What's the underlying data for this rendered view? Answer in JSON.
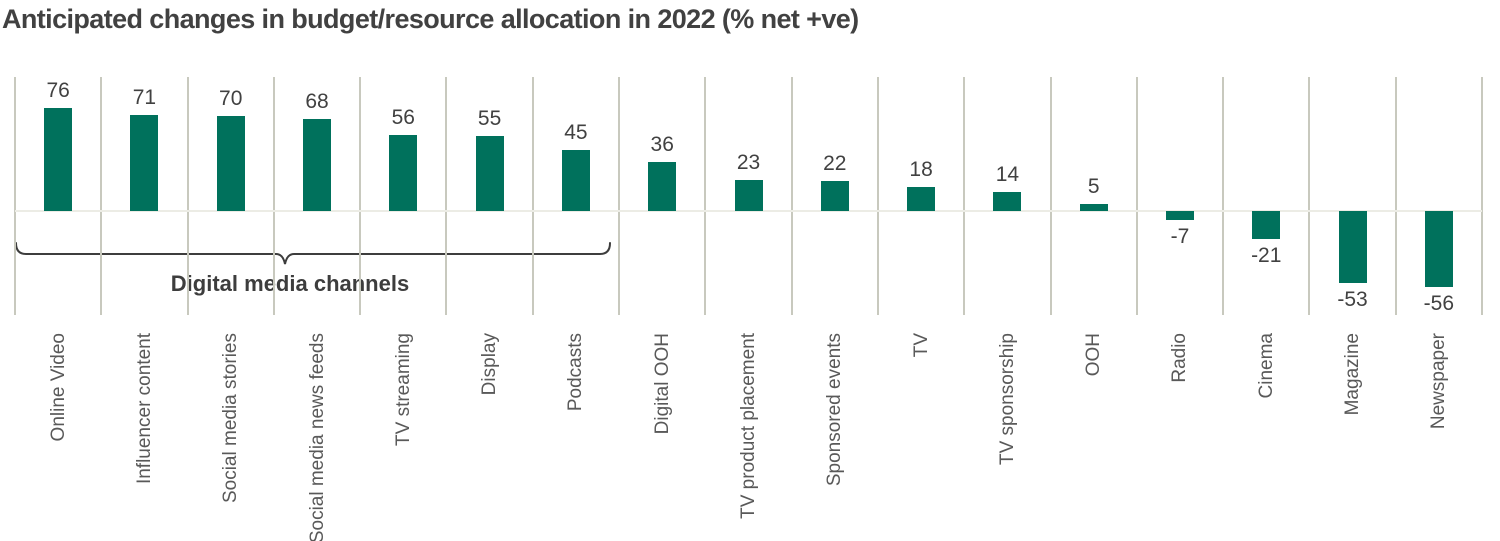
{
  "chart_data": {
    "type": "bar",
    "title": "Anticipated changes in budget/resource allocation in 2022 (% net +ve)",
    "categories": [
      "Online Video",
      "Influencer content",
      "Social media stories",
      "Social media news feeds",
      "TV streaming",
      "Display",
      "Podcasts",
      "Digital OOH",
      "TV product placement",
      "Sponsored events",
      "TV",
      "TV sponsorship",
      "OOH",
      "Radio",
      "Cinema",
      "Magazine",
      "Newspaper"
    ],
    "values": [
      76,
      71,
      70,
      68,
      56,
      55,
      45,
      36,
      23,
      22,
      18,
      14,
      5,
      -7,
      -21,
      -53,
      -56
    ],
    "value_unit": "% net positive",
    "annotation": {
      "label": "Digital media channels",
      "span_from": "Online Video",
      "span_to": "Podcasts",
      "span_count": 7
    },
    "xlabel": "",
    "ylabel": "",
    "ylim": [
      -77,
      99
    ],
    "grid": "vertical-category-separators-only",
    "legend": "none",
    "data_labels": "on"
  },
  "colors": {
    "bar": "#00715C",
    "gridline": "#C8C9BE",
    "zero_line": "#ECECE5",
    "title_text": "#414141",
    "value_text": "#414141",
    "category_text": "#595959",
    "bracket": "#3D3D3D"
  }
}
